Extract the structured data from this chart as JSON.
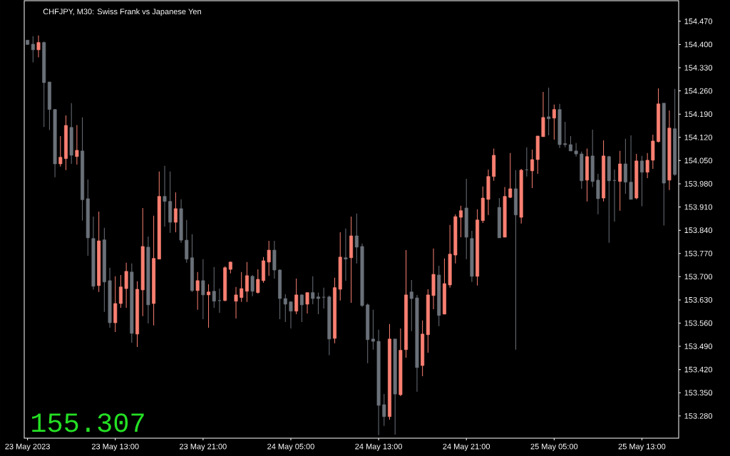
{
  "chart_data": {
    "type": "candlestick",
    "title": "CHFJPY, M30: Swiss Frank vs Japanese Yen",
    "annotations": [
      "155.307"
    ],
    "categories": [
      "23 May 2023",
      null,
      null,
      null,
      null,
      null,
      null,
      null,
      null,
      null,
      null,
      null,
      null,
      null,
      null,
      null,
      "23 May 13:00",
      null,
      null,
      null,
      null,
      null,
      null,
      null,
      null,
      null,
      null,
      null,
      null,
      null,
      null,
      null,
      "23 May 21:00",
      null,
      null,
      null,
      null,
      null,
      null,
      null,
      null,
      null,
      null,
      null,
      null,
      null,
      null,
      null,
      "24 May 05:00",
      null,
      null,
      null,
      null,
      null,
      null,
      null,
      null,
      null,
      null,
      null,
      null,
      null,
      null,
      null,
      "24 May 13:00",
      null,
      null,
      null,
      null,
      null,
      null,
      null,
      null,
      null,
      null,
      null,
      null,
      null,
      null,
      null,
      "24 May 21:00",
      null,
      null,
      null,
      null,
      null,
      null,
      null,
      null,
      null,
      null,
      null,
      null,
      null,
      null,
      null,
      "25 May 05:00",
      null,
      null,
      null,
      null,
      null,
      null,
      null,
      null,
      null,
      null,
      null,
      null,
      null,
      null,
      null,
      "25 May 13:00",
      null,
      null,
      null,
      null,
      null,
      null
    ],
    "ohlc": [
      [
        154.413,
        154.413,
        154.4,
        154.4
      ],
      [
        154.401,
        154.425,
        154.346,
        154.384
      ],
      [
        154.384,
        154.427,
        154.361,
        154.406
      ],
      [
        154.406,
        154.409,
        154.151,
        154.285
      ],
      [
        154.287,
        154.287,
        154.142,
        154.204
      ],
      [
        154.204,
        154.205,
        154.0,
        154.04
      ],
      [
        154.04,
        154.124,
        154.032,
        154.06
      ],
      [
        154.056,
        154.186,
        154.021,
        154.156
      ],
      [
        154.15,
        154.223,
        154.04,
        154.066
      ],
      [
        154.062,
        154.157,
        154.038,
        154.081
      ],
      [
        154.079,
        154.18,
        153.869,
        153.932
      ],
      [
        153.935,
        153.993,
        153.763,
        153.817
      ],
      [
        153.815,
        153.881,
        153.661,
        153.671
      ],
      [
        153.673,
        153.896,
        153.654,
        153.808
      ],
      [
        153.811,
        153.847,
        153.594,
        153.684
      ],
      [
        153.688,
        153.727,
        153.546,
        153.561
      ],
      [
        153.561,
        153.701,
        153.533,
        153.619
      ],
      [
        153.619,
        153.705,
        153.606,
        153.669
      ],
      [
        153.664,
        153.742,
        153.606,
        153.716
      ],
      [
        153.714,
        153.74,
        153.501,
        153.529
      ],
      [
        153.527,
        153.686,
        153.488,
        153.662
      ],
      [
        153.66,
        153.907,
        153.581,
        153.791
      ],
      [
        153.789,
        153.821,
        153.559,
        153.615
      ],
      [
        153.619,
        153.884,
        153.553,
        153.755
      ],
      [
        153.753,
        154.017,
        153.753,
        153.942
      ],
      [
        153.942,
        154.034,
        153.851,
        153.927
      ],
      [
        153.927,
        154.017,
        153.832,
        153.864
      ],
      [
        153.864,
        153.954,
        153.834,
        153.905
      ],
      [
        153.905,
        153.933,
        153.802,
        153.81
      ],
      [
        153.81,
        153.871,
        153.742,
        153.753
      ],
      [
        153.757,
        153.828,
        153.654,
        153.658
      ],
      [
        153.658,
        153.714,
        153.6,
        153.688
      ],
      [
        153.688,
        153.753,
        153.572,
        153.645
      ],
      [
        153.645,
        153.677,
        153.546,
        153.654
      ],
      [
        153.656,
        153.729,
        153.606,
        153.626
      ],
      [
        153.628,
        153.664,
        153.591,
        153.628
      ],
      [
        153.628,
        153.731,
        153.626,
        153.727
      ],
      [
        153.722,
        153.746,
        153.71,
        153.744
      ],
      [
        153.626,
        153.669,
        153.574,
        153.645
      ],
      [
        153.637,
        153.714,
        153.624,
        153.664
      ],
      [
        153.656,
        153.744,
        153.624,
        153.703
      ],
      [
        153.701,
        153.705,
        153.641,
        153.656
      ],
      [
        153.652,
        153.722,
        153.649,
        153.692
      ],
      [
        153.688,
        153.759,
        153.682,
        153.748
      ],
      [
        153.744,
        153.808,
        153.703,
        153.78
      ],
      [
        153.78,
        153.808,
        153.694,
        153.72
      ],
      [
        153.72,
        153.722,
        153.572,
        153.634
      ],
      [
        153.634,
        153.647,
        153.563,
        153.617
      ],
      [
        153.624,
        153.626,
        153.544,
        153.596
      ],
      [
        153.596,
        153.694,
        153.587,
        153.645
      ],
      [
        153.645,
        153.647,
        153.563,
        153.615
      ],
      [
        153.617,
        153.652,
        153.589,
        153.652
      ],
      [
        153.652,
        153.701,
        153.617,
        153.634
      ],
      [
        153.639,
        153.652,
        153.587,
        153.634
      ],
      [
        153.638,
        153.667,
        153.604,
        153.638
      ],
      [
        153.639,
        153.643,
        153.463,
        153.512
      ],
      [
        153.514,
        153.697,
        153.499,
        153.667
      ],
      [
        153.662,
        153.834,
        153.628,
        153.759
      ],
      [
        153.757,
        153.845,
        153.688,
        153.753
      ],
      [
        153.757,
        153.881,
        153.621,
        153.823
      ],
      [
        153.823,
        153.89,
        153.74,
        153.789
      ],
      [
        153.791,
        153.8,
        153.609,
        153.613
      ],
      [
        153.615,
        153.619,
        153.439,
        153.51
      ],
      [
        153.512,
        153.6,
        153.48,
        153.505
      ],
      [
        153.505,
        153.54,
        153.222,
        153.312
      ],
      [
        153.314,
        153.346,
        153.25,
        153.278
      ],
      [
        153.278,
        153.557,
        153.269,
        153.512
      ],
      [
        153.512,
        153.512,
        153.224,
        153.346
      ],
      [
        153.344,
        153.544,
        153.34,
        153.478
      ],
      [
        153.48,
        153.78,
        153.456,
        153.645
      ],
      [
        153.654,
        153.69,
        153.536,
        153.634
      ],
      [
        153.636,
        153.645,
        153.353,
        153.426
      ],
      [
        153.432,
        153.568,
        153.4,
        153.527
      ],
      [
        153.525,
        153.662,
        153.471,
        153.645
      ],
      [
        153.643,
        153.785,
        153.602,
        153.707
      ],
      [
        153.705,
        153.733,
        153.551,
        153.583
      ],
      [
        153.587,
        153.755,
        153.587,
        153.679
      ],
      [
        153.675,
        153.856,
        153.667,
        153.768
      ],
      [
        153.765,
        153.888,
        153.74,
        153.881
      ],
      [
        153.879,
        153.914,
        153.819,
        153.899
      ],
      [
        153.907,
        153.995,
        153.753,
        153.819
      ],
      [
        153.815,
        153.838,
        153.684,
        153.701
      ],
      [
        153.701,
        153.903,
        153.673,
        153.871
      ],
      [
        153.869,
        153.972,
        153.862,
        153.937
      ],
      [
        153.933,
        154.023,
        153.886,
        154.002
      ],
      [
        154.002,
        154.086,
        153.989,
        154.066
      ],
      [
        153.909,
        153.937,
        153.817,
        153.817
      ],
      [
        153.819,
        153.97,
        153.819,
        153.942
      ],
      [
        153.939,
        154.073,
        153.937,
        153.965
      ],
      [
        153.965,
        154.021,
        153.48,
        153.886
      ],
      [
        153.879,
        154.025,
        153.86,
        154.021
      ],
      [
        154.022,
        154.09,
        154.002,
        154.022
      ],
      [
        154.019,
        154.083,
        153.967,
        154.053
      ],
      [
        154.053,
        154.124,
        154.01,
        154.124
      ],
      [
        154.122,
        154.257,
        154.122,
        154.18
      ],
      [
        154.182,
        154.27,
        154.126,
        154.176
      ],
      [
        154.178,
        154.219,
        154.113,
        154.204
      ],
      [
        154.204,
        154.221,
        154.088,
        154.098
      ],
      [
        154.101,
        154.167,
        154.09,
        154.098
      ],
      [
        154.098,
        154.124,
        154.079,
        154.079
      ],
      [
        154.079,
        154.103,
        154.062,
        154.07
      ],
      [
        154.07,
        154.077,
        153.965,
        153.989
      ],
      [
        153.991,
        154.086,
        153.927,
        154.062
      ],
      [
        154.064,
        154.143,
        153.97,
        153.987
      ],
      [
        153.991,
        154.01,
        153.888,
        153.935
      ],
      [
        153.937,
        154.111,
        153.927,
        154.064
      ],
      [
        154.062,
        154.064,
        153.802,
        153.989
      ],
      [
        153.99,
        154.023,
        153.866,
        153.99
      ],
      [
        153.987,
        154.079,
        153.899,
        154.04
      ],
      [
        154.04,
        154.116,
        153.95,
        153.985
      ],
      [
        153.985,
        154.126,
        153.933,
        153.933
      ],
      [
        153.937,
        154.07,
        153.933,
        154.049
      ],
      [
        154.049,
        154.064,
        153.912,
        154.015
      ],
      [
        154.015,
        154.073,
        153.997,
        154.051
      ],
      [
        154.051,
        154.128,
        154.025,
        154.109
      ],
      [
        154.107,
        154.268,
        154.105,
        154.221
      ],
      [
        154.223,
        154.223,
        153.854,
        153.982
      ],
      [
        153.991,
        154.201,
        153.961,
        154.148
      ],
      [
        154.146,
        154.266,
        154.004,
        154.008
      ]
    ],
    "colors": [
      "#6b7179",
      "#6b7179",
      "#fa8072",
      "#6b7179",
      "#6b7179",
      "#6b7179",
      "#fa8072",
      "#fa8072",
      "#6b7179",
      "#fa8072",
      "#6b7179",
      "#6b7179",
      "#6b7179",
      "#fa8072",
      "#6b7179",
      "#6b7179",
      "#fa8072",
      "#fa8072",
      "#fa8072",
      "#6b7179",
      "#fa8072",
      "#fa8072",
      "#6b7179",
      "#fa8072",
      "#fa8072",
      "#6b7179",
      "#6b7179",
      "#fa8072",
      "#6b7179",
      "#6b7179",
      "#6b7179",
      "#fa8072",
      "#6b7179",
      "#fa8072",
      "#6b7179",
      "#6b7179",
      "#fa8072",
      "#fa8072",
      "#fa8072",
      "#fa8072",
      "#fa8072",
      "#6b7179",
      "#fa8072",
      "#fa8072",
      "#fa8072",
      "#6b7179",
      "#6b7179",
      "#6b7179",
      "#6b7179",
      "#fa8072",
      "#6b7179",
      "#fa8072",
      "#6b7179",
      "#6b7179",
      "#6b7179",
      "#6b7179",
      "#fa8072",
      "#fa8072",
      "#6b7179",
      "#fa8072",
      "#6b7179",
      "#6b7179",
      "#6b7179",
      "#6b7179",
      "#6b7179",
      "#6b7179",
      "#fa8072",
      "#6b7179",
      "#fa8072",
      "#fa8072",
      "#6b7179",
      "#6b7179",
      "#fa8072",
      "#fa8072",
      "#fa8072",
      "#6b7179",
      "#fa8072",
      "#fa8072",
      "#fa8072",
      "#fa8072",
      "#6b7179",
      "#6b7179",
      "#fa8072",
      "#fa8072",
      "#fa8072",
      "#fa8072",
      "#6b7179",
      "#fa8072",
      "#fa8072",
      "#6b7179",
      "#fa8072",
      "#6b7179",
      "#fa8072",
      "#fa8072",
      "#fa8072",
      "#6b7179",
      "#fa8072",
      "#6b7179",
      "#6b7179",
      "#6b7179",
      "#6b7179",
      "#6b7179",
      "#fa8072",
      "#6b7179",
      "#6b7179",
      "#fa8072",
      "#6b7179",
      "#6b7179",
      "#fa8072",
      "#6b7179",
      "#6b7179",
      "#fa8072",
      "#6b7179",
      "#fa8072",
      "#fa8072",
      "#fa8072",
      "#6b7179",
      "#fa8072",
      "#6b7179"
    ],
    "ylim": [
      153.213,
      154.532
    ],
    "yticks": [
      {
        "value": 153.28,
        "label": "153.280"
      },
      {
        "value": 153.35,
        "label": "153.350"
      },
      {
        "value": 153.42,
        "label": "153.420"
      },
      {
        "value": 153.49,
        "label": "153.490"
      },
      {
        "value": 153.56,
        "label": "153.560"
      },
      {
        "value": 153.63,
        "label": "153.630"
      },
      {
        "value": 153.7,
        "label": "153.700"
      },
      {
        "value": 153.77,
        "label": "153.770"
      },
      {
        "value": 153.84,
        "label": "153.840"
      },
      {
        "value": 153.91,
        "label": "153.910"
      },
      {
        "value": 153.98,
        "label": "153.980"
      },
      {
        "value": 154.05,
        "label": "154.050"
      },
      {
        "value": 154.12,
        "label": "154.120"
      },
      {
        "value": 154.19,
        "label": "154.190"
      },
      {
        "value": 154.26,
        "label": "154.260"
      },
      {
        "value": 154.33,
        "label": "154.330"
      },
      {
        "value": 154.4,
        "label": "154.400"
      },
      {
        "value": 154.47,
        "label": "154.470"
      }
    ]
  }
}
